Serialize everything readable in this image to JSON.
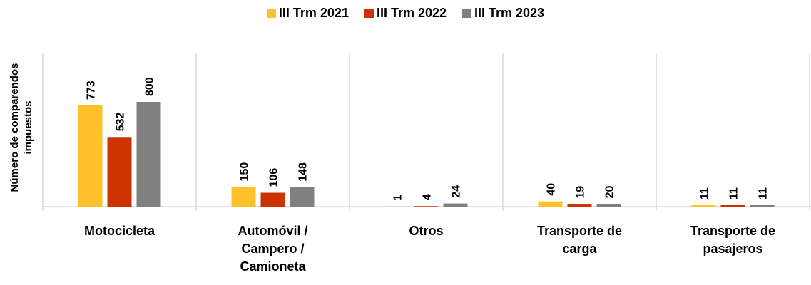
{
  "chart_data": {
    "type": "bar",
    "y_label": "Número de comparendos impuestos",
    "categories": [
      "Motocicleta",
      "Automóvil / Campero / Camioneta",
      "Otros",
      "Transporte de carga",
      "Transporte de pasajeros"
    ],
    "series": [
      {
        "name": "III Trm 2021",
        "color": "#FFC02A",
        "values": [
          773,
          150,
          1,
          40,
          11
        ]
      },
      {
        "name": "III Trm 2022",
        "color": "#CC3300",
        "values": [
          532,
          106,
          4,
          19,
          11
        ]
      },
      {
        "name": "III Trm 2023",
        "color": "#808080",
        "values": [
          800,
          148,
          24,
          20,
          11
        ]
      }
    ],
    "legend": "top"
  }
}
